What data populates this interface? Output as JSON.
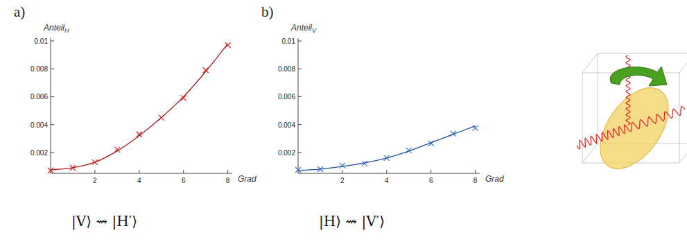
{
  "chart_data": [
    {
      "type": "scatter",
      "title": "a)",
      "ylabel": "Anteil",
      "ylabel_sub": "H",
      "xlabel": "Grad",
      "caption": "|V⟩ ⇝ |H′⟩",
      "x": [
        0,
        1,
        2,
        3,
        4,
        5,
        6,
        7,
        8
      ],
      "series": [
        {
          "type": "scatter",
          "marker": "cross",
          "color": "#d42020",
          "values": [
            0.0007,
            0.0009,
            0.0013,
            0.0022,
            0.0033,
            0.0045,
            0.0059,
            0.0079,
            0.0097
          ]
        },
        {
          "type": "line",
          "line_style": "solid",
          "color": "#b01818",
          "values": [
            0.00075,
            0.0009,
            0.0013,
            0.0021,
            0.0032,
            0.0045,
            0.006,
            0.0078,
            0.0098
          ]
        }
      ],
      "xlim": [
        0,
        8.2
      ],
      "ylim": [
        0.0005,
        0.0102
      ],
      "xticks": [
        2,
        4,
        6,
        8
      ],
      "yticks": [
        0.002,
        0.004,
        0.006,
        0.008,
        0.01
      ],
      "grid": false
    },
    {
      "type": "scatter",
      "title": "b)",
      "ylabel": "Anteil",
      "ylabel_sub": "V",
      "xlabel": "Grad",
      "caption": "|H⟩ ⇝ |V′⟩",
      "x": [
        0,
        1,
        2,
        3,
        4,
        5,
        6,
        7,
        8
      ],
      "series": [
        {
          "type": "scatter",
          "marker": "cross",
          "color": "#3a78d6",
          "values": [
            0.00075,
            0.0008,
            0.00105,
            0.0012,
            0.0016,
            0.00215,
            0.00265,
            0.00335,
            0.00375
          ]
        },
        {
          "type": "line",
          "line_style": "solid",
          "color": "#1f4f9e",
          "values": [
            0.0007,
            0.0008,
            0.001,
            0.00125,
            0.0016,
            0.0021,
            0.0027,
            0.0033,
            0.0039
          ]
        }
      ],
      "xlim": [
        0,
        8.2
      ],
      "ylim": [
        0.0005,
        0.0102
      ],
      "xticks": [
        2,
        4,
        6,
        8
      ],
      "yticks": [
        0.002,
        0.004,
        0.006,
        0.008,
        0.01
      ],
      "grid": false
    }
  ]
}
